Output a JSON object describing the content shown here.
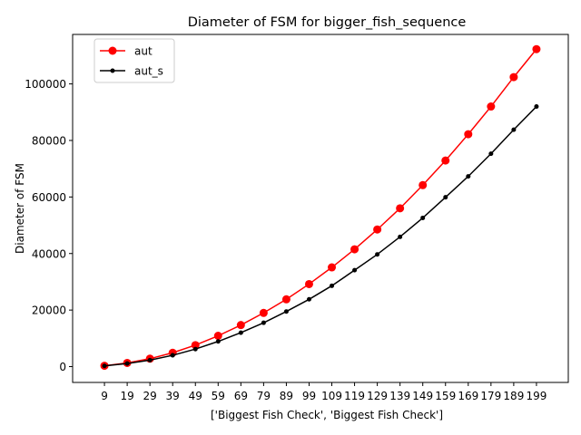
{
  "chart_data": {
    "type": "line",
    "title": "Diameter of FSM for bigger_fish_sequence",
    "xlabel": "['Biggest Fish Check', 'Biggest Fish Check']",
    "ylabel": "Diameter of FSM",
    "x": [
      9,
      19,
      29,
      39,
      49,
      59,
      69,
      79,
      89,
      99,
      109,
      119,
      129,
      139,
      149,
      159,
      169,
      179,
      189,
      199
    ],
    "x_tick_labels": [
      "9",
      "19",
      "29",
      "39",
      "49",
      "59",
      "69",
      "79",
      "89",
      "99",
      "109",
      "119",
      "129",
      "139",
      "149",
      "159",
      "169",
      "179",
      "189",
      "199"
    ],
    "y_ticks": [
      0,
      20000,
      40000,
      60000,
      80000,
      100000
    ],
    "y_tick_labels": [
      "0",
      "20000",
      "40000",
      "60000",
      "80000",
      "100000"
    ],
    "ylim": [
      -5600,
      117500
    ],
    "grid": false,
    "legend_position": "top-left",
    "series": [
      {
        "name": "aut",
        "color": "#ff0000",
        "marker": "large-circle",
        "values": [
          300,
          1300,
          2800,
          4900,
          7600,
          10900,
          14700,
          19000,
          23800,
          29200,
          35100,
          41500,
          48500,
          56000,
          64200,
          72900,
          82200,
          92000,
          102400,
          112300
        ]
      },
      {
        "name": "aut_s",
        "color": "#000000",
        "marker": "small-circle",
        "values": [
          250,
          1100,
          2300,
          4000,
          6200,
          8900,
          12000,
          15500,
          19500,
          23800,
          28600,
          34100,
          39700,
          45900,
          52600,
          59900,
          67300,
          75300,
          83800,
          92000
        ]
      }
    ]
  }
}
